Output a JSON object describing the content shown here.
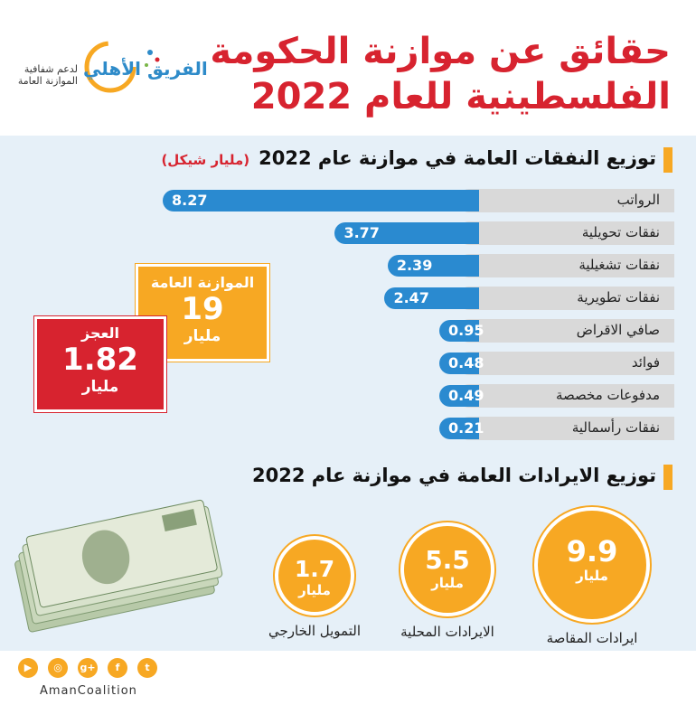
{
  "title_line1": "حقائق عن موازنة الحكومة",
  "title_line2": "الفلسطينية  للعام  2022",
  "logo": {
    "name": "الفريق الأهلي",
    "subtitle": "لدعم شفافية الموازنة العامة"
  },
  "expenditure_section": {
    "title": "توزيع النفقات العامة في موازنة عام 2022",
    "unit": "(مليار شيكل)"
  },
  "revenue_section": {
    "title": "توزيع الايرادات العامة في موازنة عام 2022"
  },
  "budget_box": {
    "label": "الموازنة العامة",
    "value": "19",
    "unit": "مليار"
  },
  "deficit_box": {
    "label": "العجز",
    "value": "1.82",
    "unit": "مليار"
  },
  "footer": {
    "name": "AmanCoalition",
    "icons": [
      "youtube-icon",
      "instagram-icon",
      "google-plus-icon",
      "facebook-icon",
      "twitter-icon"
    ]
  },
  "colors": {
    "red": "#d7232f",
    "orange": "#f7a823",
    "blue": "#2a8ad0"
  },
  "chart_data": [
    {
      "type": "bar",
      "title": "توزيع النفقات العامة في موازنة عام 2022",
      "unit": "(مليار شيكل)",
      "categories": [
        "الرواتب",
        "نفقات تحويلية",
        "نفقات تشغيلية",
        "نفقات تطويرية",
        "صافي الاقراض",
        "فوائد",
        "مدفوعات مخصصة",
        "نفقات رأسمالية"
      ],
      "values": [
        8.27,
        3.77,
        2.39,
        2.47,
        0.95,
        0.48,
        0.49,
        0.21
      ],
      "orientation": "horizontal"
    },
    {
      "type": "pie",
      "title": "توزيع الايرادات العامة في موازنة عام 2022",
      "categories": [
        "ايرادات المقاصة",
        "الايرادات المحلية",
        "التمويل الخارجي"
      ],
      "values": [
        9.9,
        5.5,
        1.7
      ],
      "value_labels": [
        "9.9",
        "5.5",
        "1.7"
      ],
      "unit": "مليار"
    }
  ]
}
